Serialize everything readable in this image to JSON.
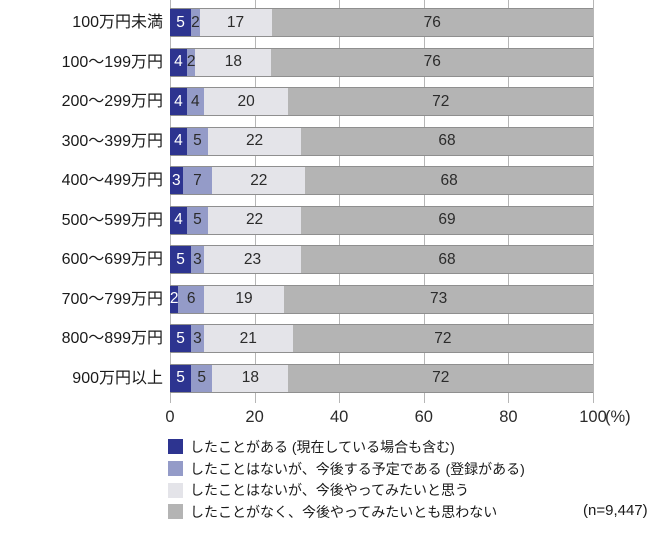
{
  "chart_data": {
    "type": "bar",
    "stacked": true,
    "orientation": "horizontal",
    "unit": "%",
    "categories": [
      "100万円未満",
      "100～199万円",
      "200～299万円",
      "300～399万円",
      "400～499万円",
      "500～599万円",
      "600～699万円",
      "700～799万円",
      "800～899万円",
      "900万円以上"
    ],
    "series": [
      {
        "name": "したことがある (現在している場合も含む)",
        "color": "#2d3490",
        "text_color": "#ffffff",
        "values": [
          5,
          4,
          4,
          4,
          3,
          4,
          5,
          2,
          5,
          5
        ]
      },
      {
        "name": "したことはないが、今後する予定である (登録がある)",
        "color": "#949bc8",
        "text_color": "#2b2b2b",
        "values": [
          2,
          2,
          4,
          5,
          7,
          5,
          3,
          6,
          3,
          5
        ]
      },
      {
        "name": "したことはないが、今後やってみたいと思う",
        "color": "#e4e4e9",
        "text_color": "#2b2b2b",
        "values": [
          17,
          18,
          20,
          22,
          22,
          22,
          23,
          19,
          21,
          18
        ]
      },
      {
        "name": "したことがなく、今後やってみたいとも思わない",
        "color": "#b4b4b4",
        "text_color": "#2b2b2b",
        "values": [
          76,
          76,
          72,
          68,
          68,
          69,
          68,
          73,
          72,
          72
        ]
      }
    ],
    "x_ticks": [
      0,
      20,
      40,
      60,
      80,
      100
    ],
    "xlim": [
      0,
      100
    ],
    "x_axis_unit_label": "(%)",
    "sample_size_label": "(n=9,447)",
    "grid": true,
    "legend_position": "bottom",
    "colors": {
      "gridline": "#b6b6b6",
      "bar_border": "#8f8f8f",
      "axis_text": "#2b2b2b"
    }
  }
}
